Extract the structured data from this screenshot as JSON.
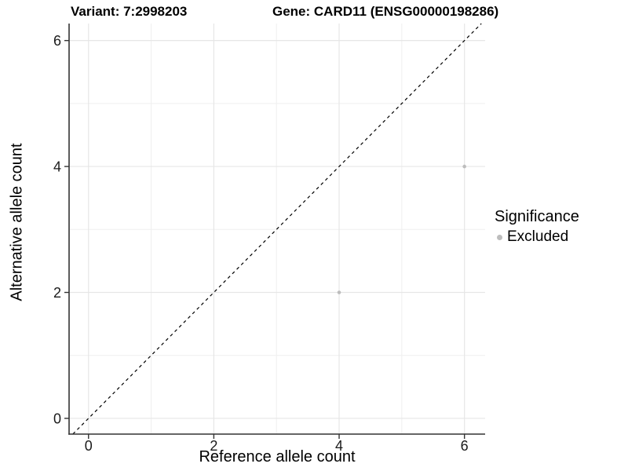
{
  "title": {
    "variant": "Variant: 7:2998203",
    "gene": "Gene: CARD11 (ENSG00000198286)"
  },
  "chart_data": {
    "type": "scatter",
    "title": "Variant: 7:2998203    Gene: CARD11 (ENSG00000198286)",
    "xlabel": "Reference allele count",
    "ylabel": "Alternative allele count",
    "xlim": [
      -0.31,
      6.33
    ],
    "ylim": [
      -0.25,
      6.27
    ],
    "xticks": [
      0,
      2,
      4,
      6
    ],
    "yticks": [
      0,
      2,
      4,
      6
    ],
    "xticks_minor": [
      1,
      3,
      5
    ],
    "yticks_minor": [
      1,
      3,
      5
    ],
    "grid": "major+minor",
    "points": [
      {
        "x": 4,
        "y": 2,
        "significance": "Excluded"
      },
      {
        "x": 6,
        "y": 4,
        "significance": "Excluded"
      }
    ],
    "reference_line": {
      "type": "identity",
      "style": "dashed",
      "color": "#000000"
    },
    "legend": {
      "title": "Significance",
      "position": "right",
      "items": [
        {
          "label": "Excluded",
          "color": "#bdbdbd"
        }
      ]
    }
  },
  "colors": {
    "background": "#ffffff",
    "point": "#bdbdbd",
    "grid_major": "#e6e6e6",
    "grid_minor": "#efefef",
    "axis_line": "#333333",
    "tick_mark": "#333333",
    "tick_text": "#1a1a1a",
    "identity_line": "#000000",
    "title_text": "#000000"
  }
}
